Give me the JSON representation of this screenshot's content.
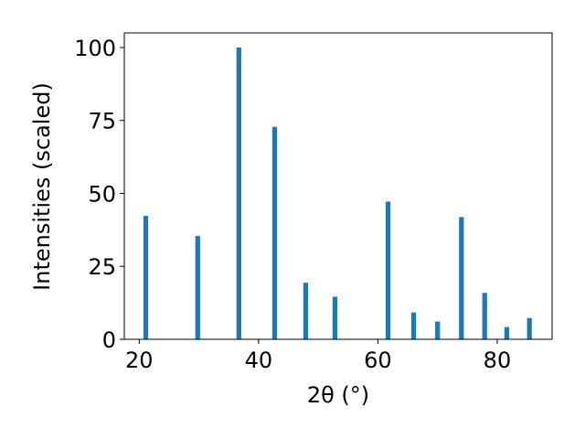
{
  "chart_data": {
    "type": "bar",
    "xlabel": "2θ (°)",
    "ylabel": "Intensities (scaled)",
    "x": [
      21.1,
      29.8,
      36.7,
      42.7,
      47.9,
      52.8,
      61.7,
      66.0,
      70.0,
      74.0,
      77.9,
      81.6,
      85.4
    ],
    "values": [
      42.3,
      35.4,
      100,
      72.8,
      19.4,
      14.6,
      47.2,
      9.2,
      6.1,
      41.9,
      15.9,
      4.2,
      7.3
    ],
    "color": "#1f77b4",
    "xlim": [
      17.5,
      89.2
    ],
    "xticks": [
      20,
      40,
      60,
      80
    ],
    "ylim": [
      0,
      105
    ],
    "yticks": [
      0,
      25,
      50,
      75,
      100
    ],
    "grid": false
  }
}
